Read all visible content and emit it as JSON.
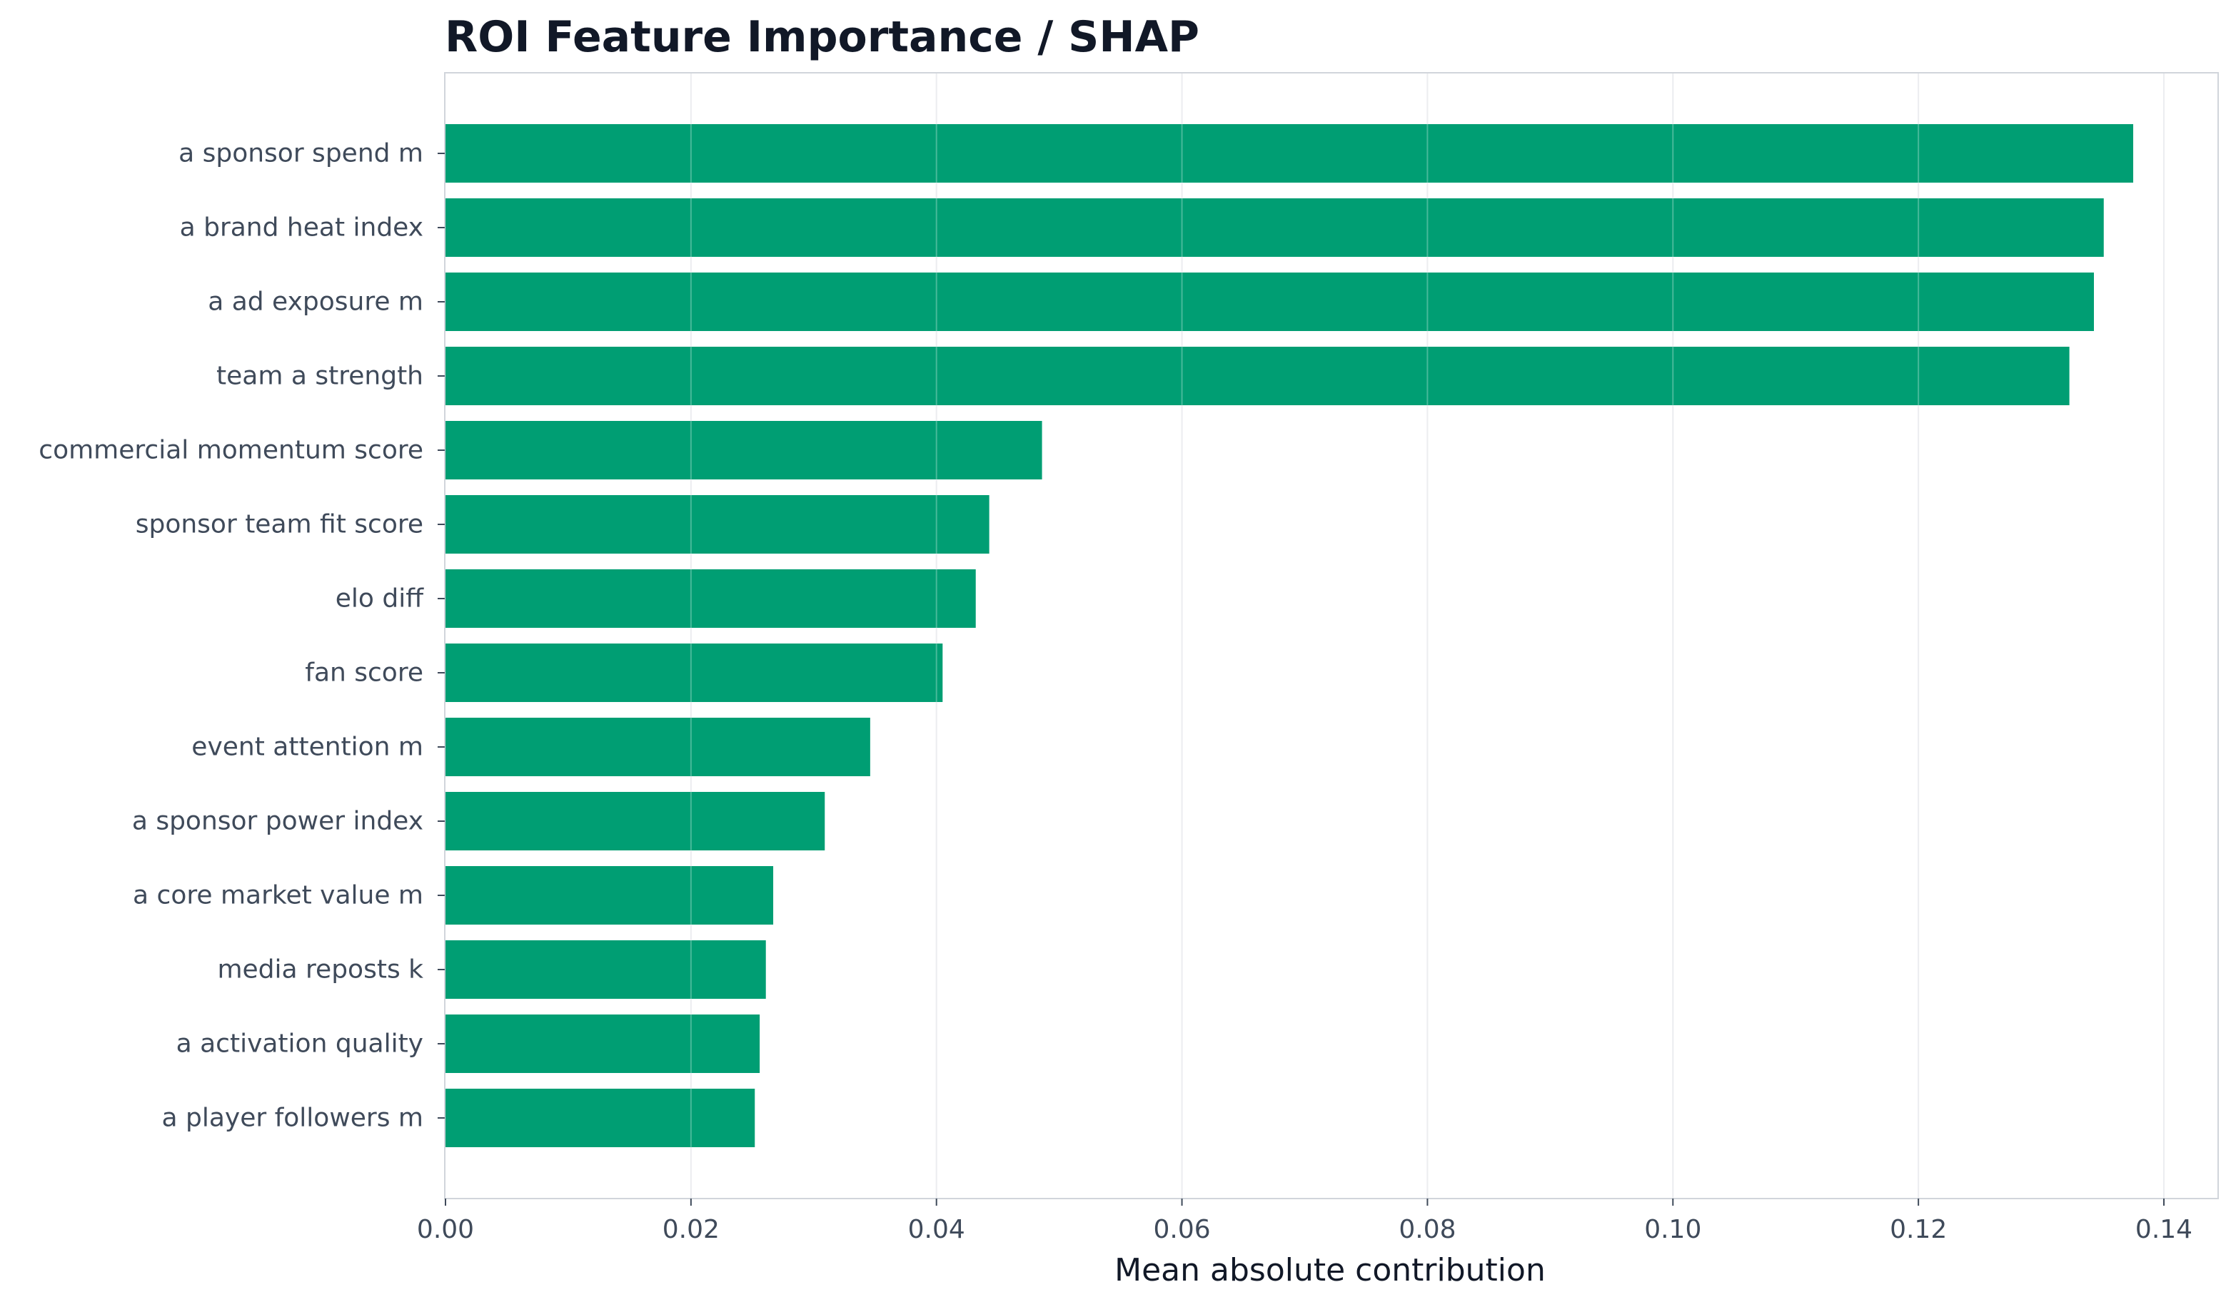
{
  "chart_data": {
    "type": "bar",
    "orientation": "horizontal",
    "title": "ROI Feature Importance / SHAP",
    "xlabel": "Mean absolute contribution",
    "ylabel": "",
    "xlim": [
      0,
      0.144
    ],
    "xticks": [
      0.0,
      0.02,
      0.04,
      0.06,
      0.08,
      0.1,
      0.12,
      0.14
    ],
    "xtick_labels": [
      "0.00",
      "0.02",
      "0.04",
      "0.06",
      "0.08",
      "0.10",
      "0.12",
      "0.14"
    ],
    "grid": "vertical",
    "categories": [
      "a sponsor spend m",
      "a brand heat index",
      "a ad exposure m",
      "team a strength",
      "commercial momentum score",
      "sponsor team fit score",
      "elo diff",
      "fan score",
      "event attention m",
      "a sponsor power index",
      "a core market value m",
      "media reposts k",
      "a activation quality",
      "a player followers m"
    ],
    "values": [
      0.1375,
      0.1351,
      0.1343,
      0.1323,
      0.0486,
      0.0443,
      0.0432,
      0.0405,
      0.0346,
      0.0309,
      0.0267,
      0.0261,
      0.0256,
      0.0252
    ],
    "colors": {
      "bar": "#009e73",
      "grid": "#e5e7eb",
      "frame": "#d1d5db",
      "text": "#3f4a5a",
      "title": "#111827"
    }
  }
}
